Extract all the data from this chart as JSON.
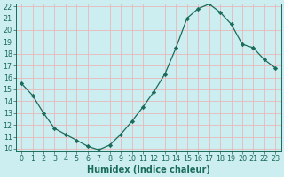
{
  "x": [
    0,
    1,
    2,
    3,
    4,
    5,
    6,
    7,
    8,
    9,
    10,
    11,
    12,
    13,
    14,
    15,
    16,
    17,
    18,
    19,
    20,
    21,
    22,
    23
  ],
  "y": [
    15.5,
    14.5,
    13.0,
    11.7,
    11.2,
    10.7,
    10.2,
    9.9,
    10.3,
    11.2,
    12.3,
    13.5,
    14.8,
    16.3,
    18.5,
    21.0,
    21.8,
    22.2,
    21.5,
    20.5,
    18.8,
    18.5,
    17.5,
    16.8
  ],
  "ylim": [
    10,
    22
  ],
  "xlim": [
    -0.5,
    23.5
  ],
  "yticks": [
    10,
    11,
    12,
    13,
    14,
    15,
    16,
    17,
    18,
    19,
    20,
    21,
    22
  ],
  "xticks": [
    0,
    1,
    2,
    3,
    4,
    5,
    6,
    7,
    8,
    9,
    10,
    11,
    12,
    13,
    14,
    15,
    16,
    17,
    18,
    19,
    20,
    21,
    22,
    23
  ],
  "xlabel": "Humidex (Indice chaleur)",
  "line_color": "#1a6b5a",
  "marker": "D",
  "marker_size": 2.2,
  "bg_color": "#cceef0",
  "grid_color": "#e8b8b8",
  "axis_color": "#1a6b5a",
  "label_color": "#1a6b5a",
  "font_size_axis": 5.8,
  "font_size_xlabel": 7.0
}
